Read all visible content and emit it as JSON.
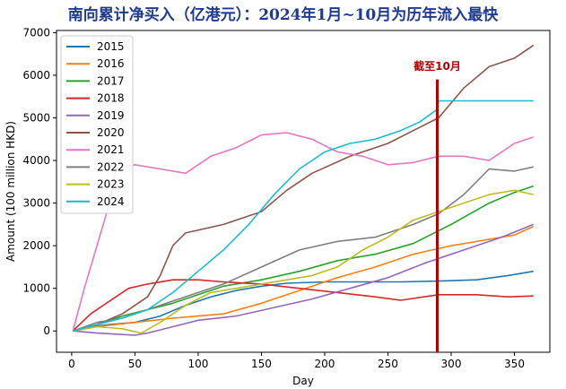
{
  "title": "南向累计净买入（亿港元）：2024年1月~10月为历年流入最快",
  "chart_data": {
    "type": "line",
    "xlabel": "Day",
    "ylabel": "Amount (100 million HKD)",
    "xlim": [
      -12,
      378
    ],
    "ylim": [
      -500,
      7050
    ],
    "xticks": [
      0,
      50,
      100,
      150,
      200,
      250,
      300,
      350
    ],
    "yticks": [
      0,
      1000,
      2000,
      3000,
      4000,
      5000,
      6000,
      7000
    ],
    "legend_position": "upper-left",
    "grid": false,
    "annotation": {
      "text": "截至10月",
      "x": 289,
      "color": "#b30000"
    },
    "series": [
      {
        "name": "2015",
        "color": "#1f77b4",
        "x": [
          1,
          15,
          30,
          50,
          70,
          90,
          110,
          130,
          150,
          170,
          200,
          230,
          260,
          290,
          320,
          345,
          365
        ],
        "y": [
          0,
          100,
          150,
          200,
          350,
          600,
          800,
          950,
          1050,
          1120,
          1150,
          1150,
          1150,
          1170,
          1200,
          1300,
          1400
        ]
      },
      {
        "name": "2016",
        "color": "#ff7f0e",
        "x": [
          1,
          20,
          50,
          80,
          100,
          120,
          150,
          180,
          210,
          240,
          270,
          300,
          330,
          350,
          365
        ],
        "y": [
          0,
          100,
          200,
          300,
          350,
          400,
          650,
          950,
          1250,
          1500,
          1800,
          2000,
          2150,
          2250,
          2450
        ]
      },
      {
        "name": "2017",
        "color": "#2ca02c",
        "x": [
          1,
          20,
          40,
          60,
          80,
          100,
          120,
          150,
          180,
          210,
          240,
          270,
          300,
          330,
          350,
          365
        ],
        "y": [
          0,
          150,
          350,
          500,
          650,
          850,
          1050,
          1200,
          1400,
          1650,
          1800,
          2050,
          2500,
          3000,
          3250,
          3400
        ]
      },
      {
        "name": "2018",
        "color": "#d62728",
        "x": [
          1,
          15,
          30,
          45,
          60,
          80,
          100,
          120,
          150,
          180,
          210,
          240,
          260,
          290,
          320,
          345,
          365
        ],
        "y": [
          0,
          400,
          700,
          1000,
          1100,
          1200,
          1200,
          1150,
          1100,
          1000,
          900,
          800,
          720,
          850,
          850,
          800,
          820
        ]
      },
      {
        "name": "2019",
        "color": "#9467bd",
        "x": [
          1,
          20,
          50,
          60,
          80,
          100,
          130,
          160,
          190,
          220,
          250,
          280,
          310,
          340,
          365
        ],
        "y": [
          0,
          -50,
          -100,
          -50,
          100,
          250,
          350,
          550,
          750,
          1000,
          1250,
          1600,
          1900,
          2200,
          2500
        ]
      },
      {
        "name": "2020",
        "color": "#8c564b",
        "x": [
          1,
          20,
          40,
          60,
          70,
          80,
          90,
          120,
          150,
          170,
          190,
          220,
          250,
          270,
          290,
          310,
          330,
          350,
          365
        ],
        "y": [
          0,
          150,
          400,
          800,
          1300,
          2000,
          2300,
          2500,
          2800,
          3300,
          3700,
          4100,
          4400,
          4700,
          5000,
          5700,
          6200,
          6400,
          6700
        ]
      },
      {
        "name": "2021",
        "color": "#e377c2",
        "x": [
          1,
          10,
          20,
          30,
          35,
          50,
          70,
          90,
          110,
          130,
          150,
          170,
          190,
          210,
          230,
          250,
          270,
          290,
          310,
          330,
          350,
          365
        ],
        "y": [
          0,
          1000,
          2000,
          3000,
          3800,
          3900,
          3800,
          3700,
          4100,
          4300,
          4600,
          4650,
          4500,
          4200,
          4100,
          3900,
          3950,
          4100,
          4100,
          4000,
          4400,
          4550
        ]
      },
      {
        "name": "2022",
        "color": "#7f7f7f",
        "x": [
          1,
          20,
          40,
          60,
          80,
          100,
          120,
          150,
          180,
          210,
          240,
          270,
          290,
          310,
          330,
          350,
          365
        ],
        "y": [
          0,
          200,
          300,
          500,
          700,
          900,
          1100,
          1500,
          1900,
          2100,
          2200,
          2500,
          2750,
          3200,
          3800,
          3750,
          3850
        ]
      },
      {
        "name": "2023",
        "color": "#bcbd22",
        "x": [
          1,
          20,
          40,
          55,
          70,
          90,
          110,
          130,
          150,
          170,
          190,
          210,
          230,
          250,
          270,
          290,
          310,
          330,
          350,
          365
        ],
        "y": [
          0,
          100,
          50,
          -50,
          200,
          600,
          900,
          1000,
          1100,
          1200,
          1300,
          1500,
          1900,
          2200,
          2600,
          2800,
          3000,
          3200,
          3300,
          3200
        ]
      },
      {
        "name": "2024",
        "color": "#17becf",
        "x": [
          1,
          20,
          40,
          60,
          80,
          100,
          120,
          140,
          160,
          180,
          200,
          220,
          240,
          260,
          275,
          289,
          290,
          300,
          330,
          365
        ],
        "y": [
          0,
          150,
          300,
          500,
          900,
          1400,
          1900,
          2500,
          3200,
          3800,
          4200,
          4400,
          4500,
          4700,
          4900,
          5200,
          5400,
          5400,
          5400,
          5400
        ]
      }
    ]
  }
}
